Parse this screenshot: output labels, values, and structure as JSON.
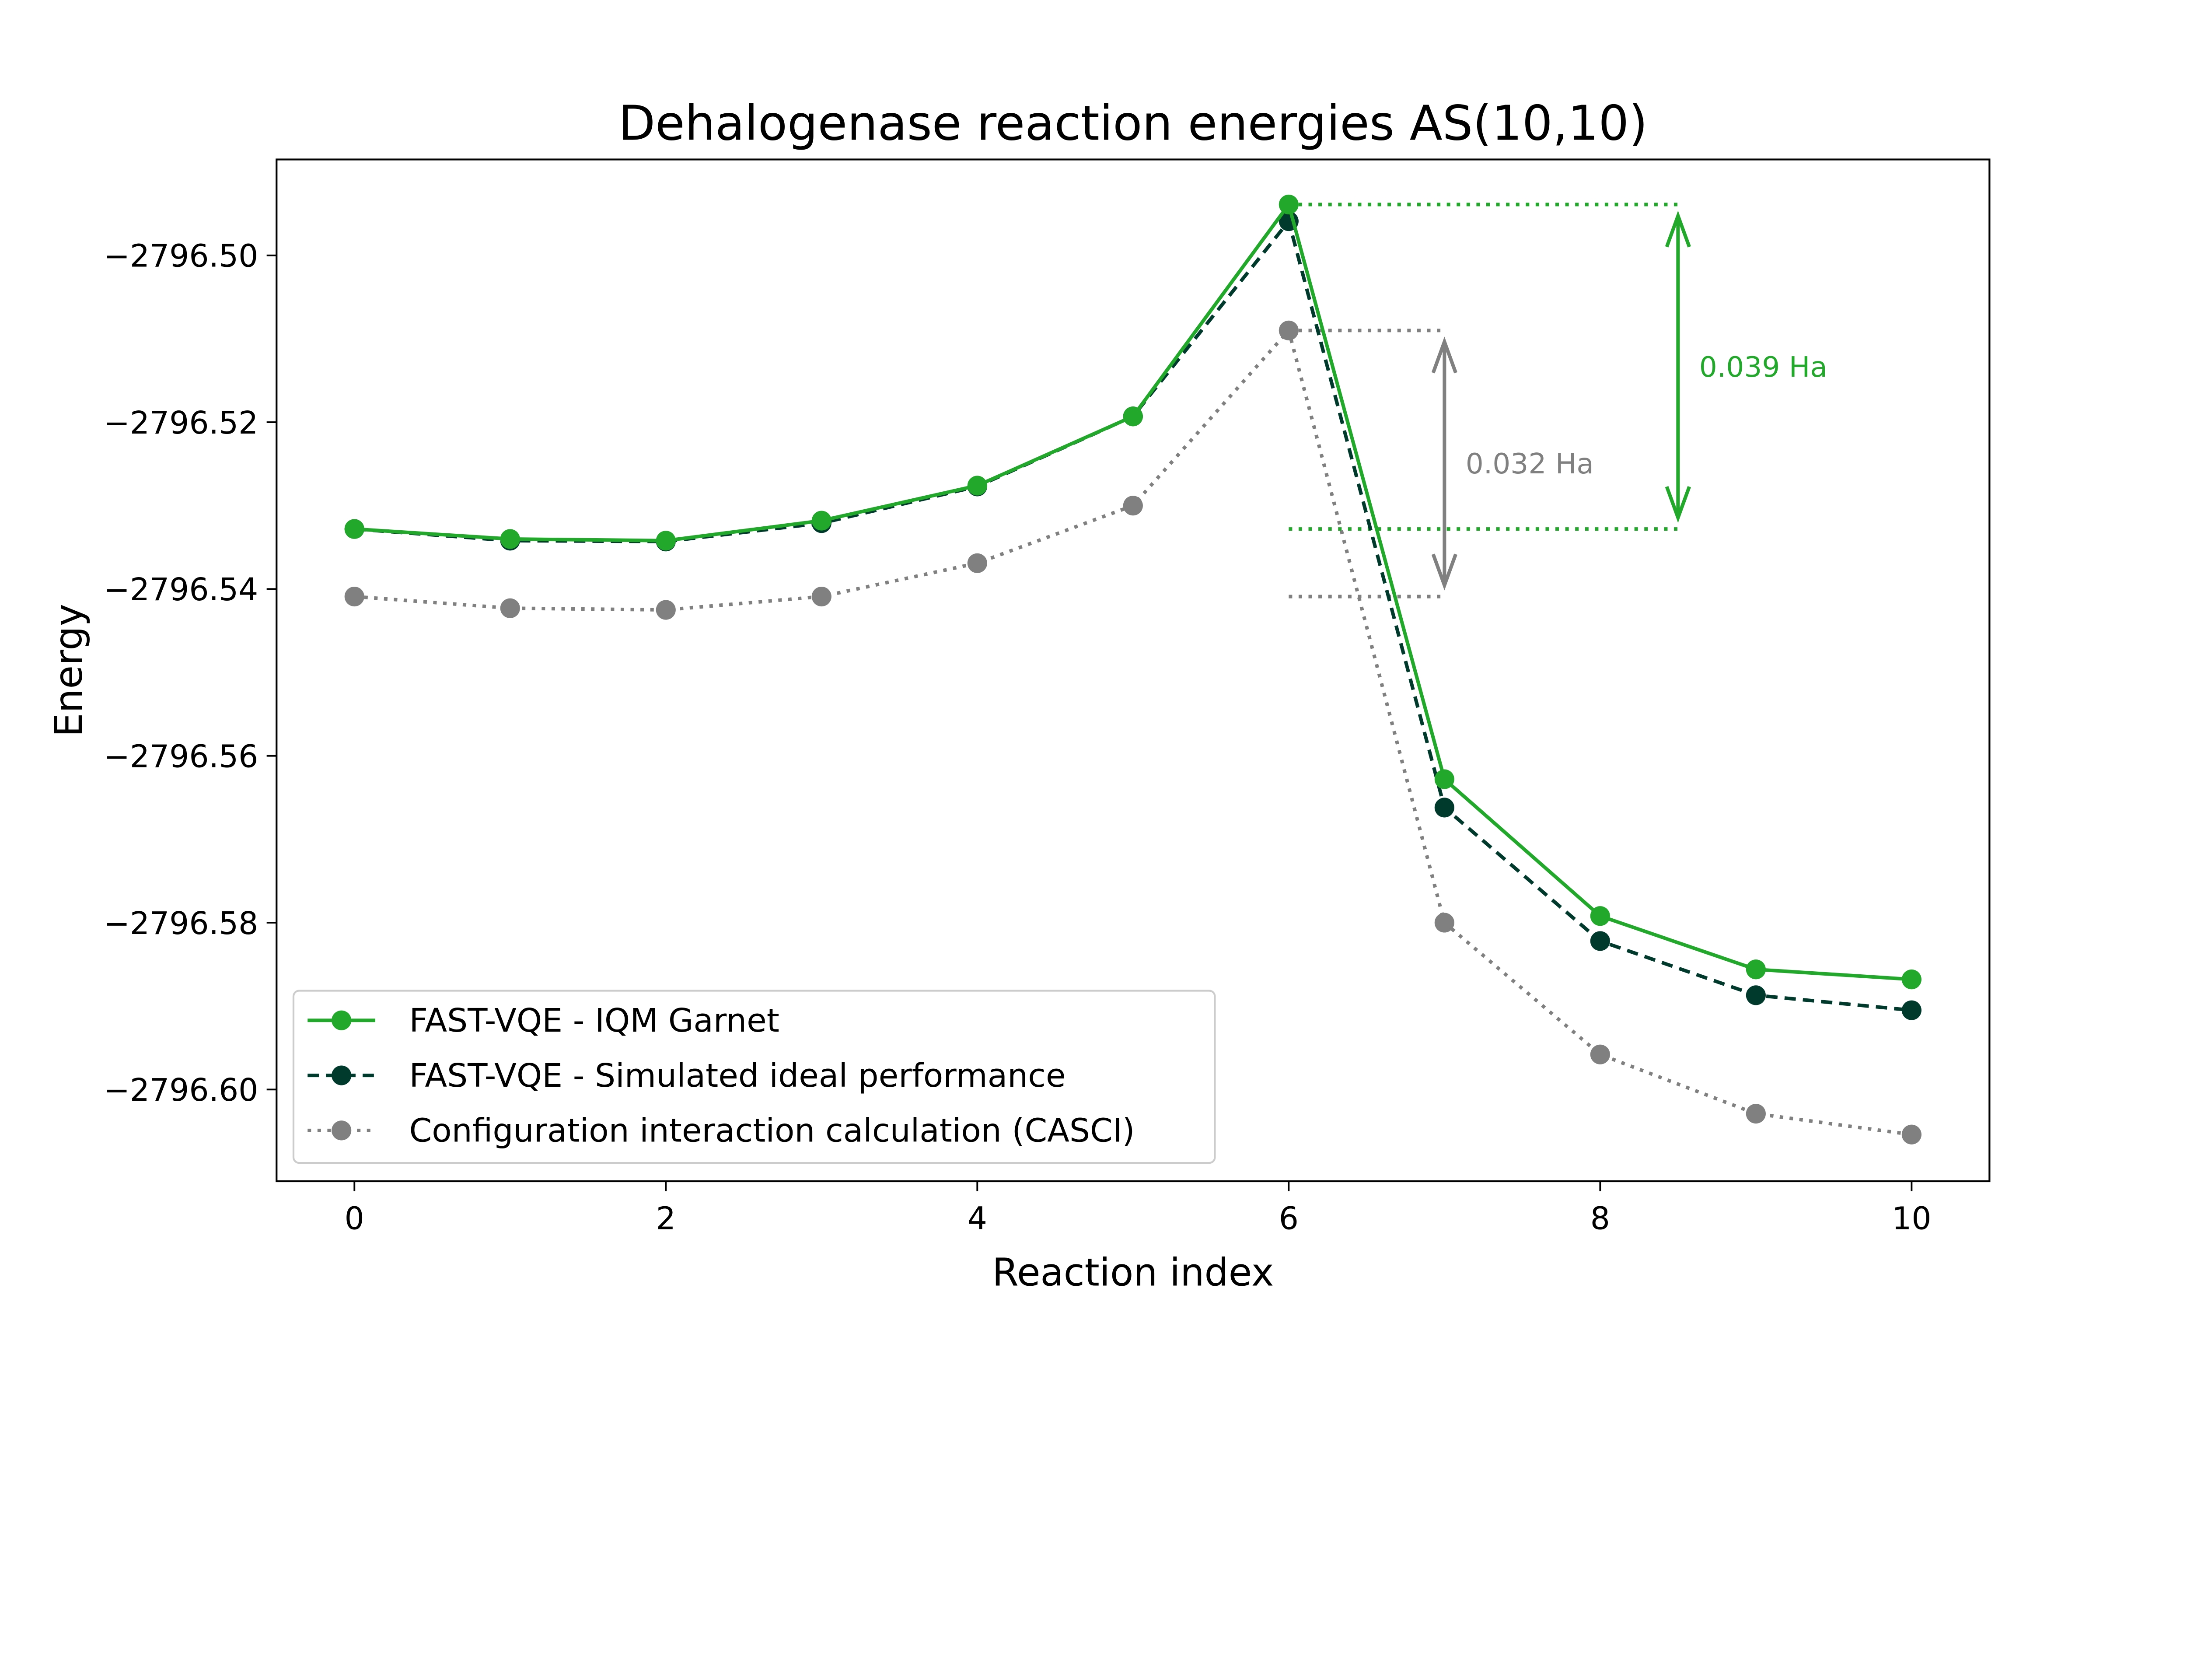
{
  "chart_data": {
    "type": "line",
    "title": "Dehalogenase reaction energies AS(10,10)",
    "xlabel": "Reaction index",
    "ylabel": "Energy",
    "xlim": [
      -0.5,
      10.5
    ],
    "ylim": [
      -2796.611,
      -2796.4885
    ],
    "xticks": [
      0,
      2,
      4,
      6,
      8,
      10
    ],
    "xtick_labels": [
      "0",
      "2",
      "4",
      "6",
      "8",
      "10"
    ],
    "yticks": [
      -2796.6,
      -2796.58,
      -2796.56,
      -2796.54,
      -2796.52,
      -2796.5
    ],
    "ytick_labels": [
      "−2796.60",
      "−2796.58",
      "−2796.56",
      "−2796.54",
      "−2796.52",
      "−2796.50"
    ],
    "grid": false,
    "legend_position": "lower-left",
    "x": [
      0,
      1,
      2,
      3,
      4,
      5,
      6,
      7,
      8,
      9,
      10
    ],
    "series": [
      {
        "name": "FAST-VQE - IQM Garnet",
        "color": "#22a82a",
        "style": "solid",
        "values": [
          -2796.5328,
          -2796.534,
          -2796.5342,
          -2796.5318,
          -2796.5276,
          -2796.5193,
          -2796.4939,
          -2796.5628,
          -2796.5792,
          -2796.5856,
          -2796.5868
        ]
      },
      {
        "name": "FAST-VQE - Simulated ideal performance",
        "color": "#003a2c",
        "style": "dashed",
        "values": [
          -2796.5328,
          -2796.5342,
          -2796.5343,
          -2796.5321,
          -2796.5277,
          -2796.5193,
          -2796.4959,
          -2796.5662,
          -2796.5822,
          -2796.5887,
          -2796.5905
        ]
      },
      {
        "name": "Configuration interaction calculation (CASCI)",
        "color": "#808080",
        "style": "dotted",
        "values": [
          -2796.5409,
          -2796.5423,
          -2796.5425,
          -2796.5409,
          -2796.5369,
          -2796.53,
          -2796.509,
          -2796.58,
          -2796.5958,
          -2796.6029,
          -2796.6054
        ]
      }
    ],
    "annotations": [
      {
        "text": "0.039 Ha",
        "color": "#22a82a",
        "from": -2796.4939,
        "to": -2796.5328,
        "x_start": 6,
        "arrow_x": 8.5
      },
      {
        "text": "0.032 Ha",
        "color": "#808080",
        "from": -2796.509,
        "to": -2796.5409,
        "x_start": 6,
        "arrow_x": 7
      }
    ]
  }
}
